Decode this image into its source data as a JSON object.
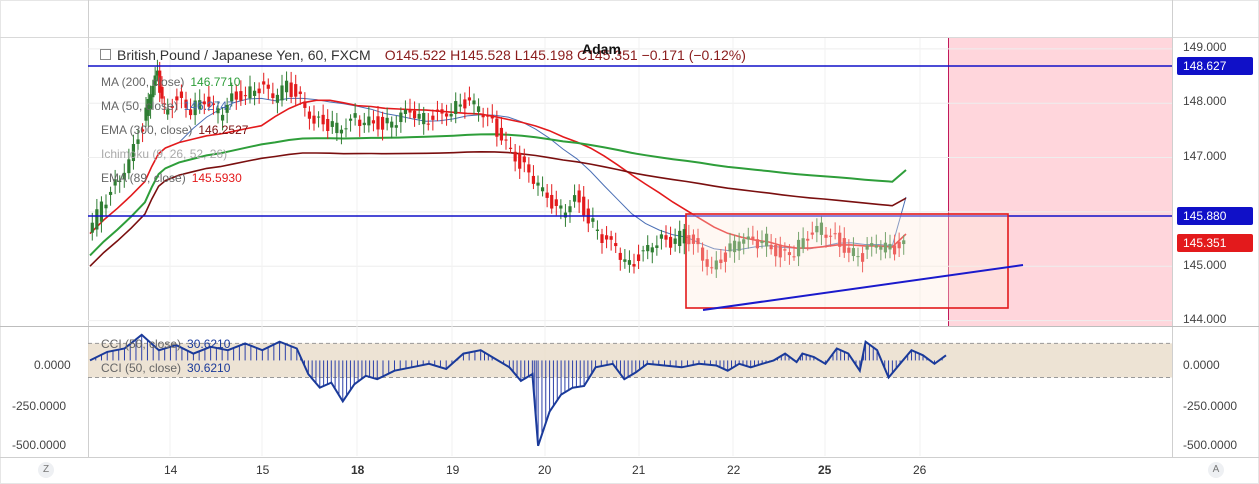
{
  "header": {
    "symbol": "British Pound / Japanese Yen, 60, FXCM",
    "ohlc": "O145.522  H145.528  L145.198  C145.351  −0.171  (−0.12%)",
    "author": "Adam"
  },
  "indicators": [
    {
      "label": "MA (200, close)",
      "value": "146.7710",
      "color": "#2e9e3a"
    },
    {
      "label": "MA (50, close)",
      "value": "146.2747",
      "color": "#4a6fb5"
    },
    {
      "label": "EMA (300, close)",
      "value": "146.2527",
      "color": "#7a0f0f"
    },
    {
      "label": "Ichimoku (9, 26, 52, 26)",
      "value": "",
      "color": "#888888"
    },
    {
      "label": "EMA (89, close)",
      "value": "145.5930",
      "color": "#e31a1c"
    }
  ],
  "cci_labels": [
    {
      "label": "CCI (50, close)",
      "value": "30.6210"
    },
    {
      "label": "CCI (50, close)",
      "value": "30.6210"
    }
  ],
  "price_tags": [
    {
      "value": "148.627",
      "color": "#1010c8"
    },
    {
      "value": "145.880",
      "color": "#1010c8"
    },
    {
      "value": "145.351",
      "color": "#e31a1c"
    }
  ],
  "colors": {
    "up": "#2e7d32",
    "down": "#e31a1c",
    "hline": "#1010c8",
    "trend": "#1a1acc",
    "cci": "#1a3a9a",
    "band": "#e9dcc9",
    "future_zone": "#ffd6dc"
  },
  "chart_data": {
    "type": "candlestick",
    "symbol": "GBP/JPY",
    "timeframe": "60",
    "x_ticks": [
      "14",
      "15",
      "18",
      "19",
      "20",
      "21",
      "22",
      "25",
      "26"
    ],
    "ylim": [
      143.9,
      149.2
    ],
    "y_ticks": [
      "149.000",
      "148.000",
      "147.000",
      "145.000",
      "144.000"
    ],
    "close_path": [
      [
        0,
        145.6
      ],
      [
        4,
        146.1
      ],
      [
        8,
        146.5
      ],
      [
        12,
        147.0
      ],
      [
        16,
        147.6
      ],
      [
        18,
        148.2
      ],
      [
        20,
        148.5
      ],
      [
        22,
        147.9
      ],
      [
        26,
        148.1
      ],
      [
        30,
        147.9
      ],
      [
        34,
        148.0
      ],
      [
        38,
        147.8
      ],
      [
        42,
        148.1
      ],
      [
        46,
        148.2
      ],
      [
        50,
        148.3
      ],
      [
        54,
        148.1
      ],
      [
        58,
        148.3
      ],
      [
        62,
        148.1
      ],
      [
        66,
        147.7
      ],
      [
        70,
        147.6
      ],
      [
        74,
        147.5
      ],
      [
        78,
        147.7
      ],
      [
        82,
        147.7
      ],
      [
        86,
        147.6
      ],
      [
        90,
        147.7
      ],
      [
        94,
        147.8
      ],
      [
        98,
        147.7
      ],
      [
        102,
        147.8
      ],
      [
        106,
        147.9
      ],
      [
        110,
        148.0
      ],
      [
        114,
        147.9
      ],
      [
        118,
        147.6
      ],
      [
        122,
        147.3
      ],
      [
        126,
        146.9
      ],
      [
        130,
        146.6
      ],
      [
        134,
        146.2
      ],
      [
        138,
        146.0
      ],
      [
        142,
        146.3
      ],
      [
        146,
        145.9
      ],
      [
        150,
        145.5
      ],
      [
        154,
        145.3
      ],
      [
        158,
        145.0
      ],
      [
        162,
        145.3
      ],
      [
        166,
        145.5
      ],
      [
        170,
        145.4
      ],
      [
        174,
        145.6
      ],
      [
        178,
        145.3
      ],
      [
        182,
        145.0
      ],
      [
        186,
        145.2
      ],
      [
        190,
        145.5
      ],
      [
        194,
        145.4
      ],
      [
        198,
        145.5
      ],
      [
        202,
        145.2
      ],
      [
        206,
        145.3
      ],
      [
        210,
        145.5
      ],
      [
        214,
        145.7
      ],
      [
        218,
        145.5
      ],
      [
        222,
        145.3
      ],
      [
        226,
        145.2
      ],
      [
        230,
        145.4
      ],
      [
        234,
        145.3
      ],
      [
        238,
        145.4
      ]
    ],
    "series": [
      {
        "name": "MA (200, close)",
        "last": 146.771
      },
      {
        "name": "MA (50, close)",
        "last": 146.2747
      },
      {
        "name": "EMA (300, close)",
        "last": 146.2527
      },
      {
        "name": "EMA (89, close)",
        "last": 145.593
      }
    ],
    "horizontal_lines": [
      148.627,
      145.88
    ],
    "rectangle": {
      "from_day": "21",
      "to": "26+",
      "top": 145.9,
      "bottom": 144.2
    },
    "trendline": {
      "from": 144.15,
      "to": 144.95
    },
    "last_price": 145.351,
    "cci": {
      "name": "CCI (50, close)",
      "last": 30.621,
      "ylim": [
        -560,
        190
      ],
      "y_ticks": [
        "0.0000",
        "-250.0000",
        "-500.0000"
      ],
      "band": [
        -100,
        100
      ],
      "path": [
        [
          0,
          0
        ],
        [
          6,
          50
        ],
        [
          12,
          70
        ],
        [
          18,
          150
        ],
        [
          24,
          60
        ],
        [
          30,
          90
        ],
        [
          36,
          40
        ],
        [
          42,
          80
        ],
        [
          48,
          60
        ],
        [
          54,
          100
        ],
        [
          60,
          60
        ],
        [
          66,
          110
        ],
        [
          72,
          70
        ],
        [
          76,
          -80
        ],
        [
          80,
          -160
        ],
        [
          84,
          -130
        ],
        [
          88,
          -240
        ],
        [
          92,
          -140
        ],
        [
          96,
          -90
        ],
        [
          100,
          -110
        ],
        [
          106,
          -60
        ],
        [
          112,
          -40
        ],
        [
          118,
          -20
        ],
        [
          124,
          -50
        ],
        [
          130,
          40
        ],
        [
          136,
          60
        ],
        [
          140,
          20
        ],
        [
          146,
          -40
        ],
        [
          150,
          -120
        ],
        [
          154,
          -80
        ],
        [
          156,
          -500
        ],
        [
          160,
          -300
        ],
        [
          164,
          -200
        ],
        [
          168,
          -160
        ],
        [
          172,
          -150
        ],
        [
          176,
          -40
        ],
        [
          182,
          -20
        ],
        [
          186,
          -110
        ],
        [
          190,
          -70
        ],
        [
          194,
          -20
        ],
        [
          200,
          -30
        ],
        [
          206,
          -40
        ],
        [
          212,
          -20
        ],
        [
          218,
          -30
        ],
        [
          222,
          -60
        ],
        [
          226,
          -20
        ],
        [
          230,
          -40
        ],
        [
          234,
          -20
        ],
        [
          238,
          0
        ],
        [
          242,
          40
        ],
        [
          246,
          -10
        ],
        [
          248,
          40
        ],
        [
          252,
          20
        ],
        [
          256,
          -20
        ],
        [
          260,
          70
        ],
        [
          264,
          40
        ],
        [
          268,
          -60
        ],
        [
          270,
          110
        ],
        [
          274,
          60
        ],
        [
          278,
          -100
        ],
        [
          282,
          -20
        ],
        [
          286,
          60
        ],
        [
          290,
          30
        ],
        [
          294,
          -20
        ],
        [
          298,
          30
        ]
      ]
    }
  }
}
